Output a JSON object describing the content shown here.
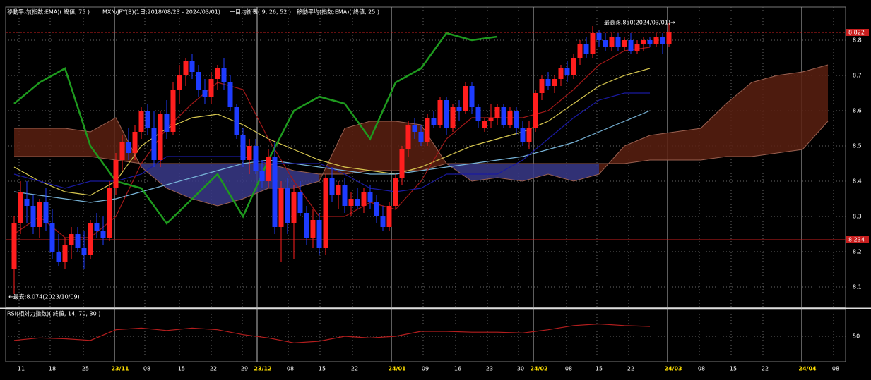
{
  "chart_data": {
    "type": "candlestick",
    "indicator_labels": [
      "移動平均(指数:EMA)( 終値, 75 )",
      "MXN/JPY(B)(1日;2018/08/23 - 2024/03/01)",
      "一目均衡表( 9, 26, 52 )",
      "移動平均(指数:EMA)( 終値, 25 )"
    ],
    "up_color": "#ff1e1e",
    "down_color": "#1e3cff",
    "ylim": [
      8.044,
      8.89
    ],
    "yticks": [
      8.8,
      8.7,
      8.6,
      8.5,
      8.4,
      8.3,
      8.2,
      8.1
    ],
    "grid": true,
    "xticks": [
      "11",
      "18",
      "25",
      "23/11",
      "08",
      "15",
      "22",
      "29",
      "23/12",
      "08",
      "15",
      "22",
      "24/01",
      "09",
      "16",
      "23",
      "30",
      "24/02",
      "08",
      "15",
      "22",
      "24/03",
      "08",
      "15",
      "22",
      "24/04",
      "08"
    ],
    "price_lines": [
      {
        "value": 8.822,
        "style": "dashed",
        "color": "#c81e1e"
      },
      {
        "value": 8.234,
        "style": "solid",
        "color": "#c81e1e"
      }
    ],
    "annotations": [
      "最高:8.850(2024/03/01)→",
      "←最安:8.074(2023/10/09)"
    ],
    "candles": [
      [
        8.15,
        8.3,
        8.08,
        8.28
      ],
      [
        8.28,
        8.4,
        8.25,
        8.37
      ],
      [
        8.35,
        8.4,
        8.28,
        8.33
      ],
      [
        8.33,
        8.36,
        8.25,
        8.27
      ],
      [
        8.27,
        8.35,
        8.24,
        8.34
      ],
      [
        8.34,
        8.38,
        8.26,
        8.28
      ],
      [
        8.28,
        8.32,
        8.18,
        8.2
      ],
      [
        8.2,
        8.25,
        8.16,
        8.17
      ],
      [
        8.17,
        8.24,
        8.15,
        8.22
      ],
      [
        8.22,
        8.27,
        8.18,
        8.25
      ],
      [
        8.25,
        8.27,
        8.2,
        8.21
      ],
      [
        8.21,
        8.26,
        8.15,
        8.19
      ],
      [
        8.19,
        8.29,
        8.18,
        8.28
      ],
      [
        8.28,
        8.31,
        8.24,
        8.26
      ],
      [
        8.26,
        8.3,
        8.22,
        8.24
      ],
      [
        8.24,
        8.4,
        8.23,
        8.38
      ],
      [
        8.38,
        8.48,
        8.36,
        8.46
      ],
      [
        8.46,
        8.53,
        8.43,
        8.51
      ],
      [
        8.51,
        8.55,
        8.46,
        8.48
      ],
      [
        8.48,
        8.56,
        8.46,
        8.54
      ],
      [
        8.54,
        8.61,
        8.52,
        8.6
      ],
      [
        8.6,
        8.62,
        8.53,
        8.55
      ],
      [
        8.55,
        8.6,
        8.44,
        8.46
      ],
      [
        8.46,
        8.6,
        8.44,
        8.59
      ],
      [
        8.59,
        8.63,
        8.52,
        8.54
      ],
      [
        8.54,
        8.68,
        8.53,
        8.66
      ],
      [
        8.66,
        8.73,
        8.62,
        8.7
      ],
      [
        8.7,
        8.75,
        8.67,
        8.74
      ],
      [
        8.74,
        8.76,
        8.69,
        8.71
      ],
      [
        8.71,
        8.73,
        8.64,
        8.66
      ],
      [
        8.66,
        8.69,
        8.62,
        8.64
      ],
      [
        8.64,
        8.71,
        8.62,
        8.69
      ],
      [
        8.69,
        8.73,
        8.66,
        8.72
      ],
      [
        8.72,
        8.75,
        8.66,
        8.68
      ],
      [
        8.68,
        8.7,
        8.6,
        8.61
      ],
      [
        8.61,
        8.62,
        8.52,
        8.53
      ],
      [
        8.53,
        8.55,
        8.44,
        8.46
      ],
      [
        8.46,
        8.52,
        8.42,
        8.5
      ],
      [
        8.5,
        8.52,
        8.42,
        8.43
      ],
      [
        8.43,
        8.46,
        8.38,
        8.4
      ],
      [
        8.4,
        8.49,
        8.38,
        8.47
      ],
      [
        8.47,
        8.51,
        8.25,
        8.27
      ],
      [
        8.27,
        8.4,
        8.17,
        8.38
      ],
      [
        8.38,
        8.41,
        8.25,
        8.28
      ],
      [
        8.28,
        8.39,
        8.18,
        8.37
      ],
      [
        8.37,
        8.4,
        8.3,
        8.31
      ],
      [
        8.31,
        8.33,
        8.22,
        8.24
      ],
      [
        8.24,
        8.32,
        8.21,
        8.29
      ],
      [
        8.29,
        8.31,
        8.19,
        8.21
      ],
      [
        8.21,
        8.42,
        8.19,
        8.41
      ],
      [
        8.41,
        8.44,
        8.34,
        8.36
      ],
      [
        8.36,
        8.4,
        8.32,
        8.39
      ],
      [
        8.39,
        8.41,
        8.31,
        8.33
      ],
      [
        8.33,
        8.37,
        8.3,
        8.35
      ],
      [
        8.35,
        8.38,
        8.32,
        8.33
      ],
      [
        8.33,
        8.38,
        8.31,
        8.37
      ],
      [
        8.37,
        8.39,
        8.32,
        8.34
      ],
      [
        8.34,
        8.36,
        8.28,
        8.3
      ],
      [
        8.3,
        8.33,
        8.26,
        8.27
      ],
      [
        8.27,
        8.34,
        8.26,
        8.33
      ],
      [
        8.33,
        8.42,
        8.32,
        8.41
      ],
      [
        8.41,
        8.5,
        8.39,
        8.49
      ],
      [
        8.49,
        8.57,
        8.47,
        8.56
      ],
      [
        8.56,
        8.58,
        8.52,
        8.54
      ],
      [
        8.54,
        8.56,
        8.5,
        8.51
      ],
      [
        8.51,
        8.59,
        8.5,
        8.58
      ],
      [
        8.58,
        8.6,
        8.55,
        8.56
      ],
      [
        8.56,
        8.64,
        8.55,
        8.63
      ],
      [
        8.63,
        8.64,
        8.53,
        8.55
      ],
      [
        8.55,
        8.62,
        8.54,
        8.61
      ],
      [
        8.61,
        8.63,
        8.57,
        8.6
      ],
      [
        8.6,
        8.68,
        8.59,
        8.67
      ],
      [
        8.67,
        8.68,
        8.59,
        8.61
      ],
      [
        8.61,
        8.62,
        8.55,
        8.57
      ],
      [
        8.55,
        8.58,
        8.54,
        8.57
      ],
      [
        8.57,
        8.62,
        8.55,
        8.58
      ],
      [
        8.58,
        8.62,
        8.56,
        8.61
      ],
      [
        8.61,
        8.62,
        8.55,
        8.56
      ],
      [
        8.56,
        8.61,
        8.55,
        8.6
      ],
      [
        8.6,
        8.61,
        8.53,
        8.55
      ],
      [
        8.55,
        8.57,
        8.5,
        8.51
      ],
      [
        8.51,
        8.57,
        8.49,
        8.55
      ],
      [
        8.55,
        8.66,
        8.54,
        8.65
      ],
      [
        8.65,
        8.7,
        8.63,
        8.69
      ],
      [
        8.69,
        8.71,
        8.66,
        8.67
      ],
      [
        8.67,
        8.7,
        8.65,
        8.69
      ],
      [
        8.69,
        8.73,
        8.67,
        8.72
      ],
      [
        8.72,
        8.74,
        8.68,
        8.7
      ],
      [
        8.7,
        8.76,
        8.69,
        8.75
      ],
      [
        8.75,
        8.8,
        8.73,
        8.79
      ],
      [
        8.79,
        8.81,
        8.75,
        8.76
      ],
      [
        8.76,
        8.84,
        8.75,
        8.82
      ],
      [
        8.82,
        8.83,
        8.78,
        8.8
      ],
      [
        8.8,
        8.82,
        8.77,
        8.78
      ],
      [
        8.78,
        8.82,
        8.77,
        8.81
      ],
      [
        8.81,
        8.82,
        8.77,
        8.78
      ],
      [
        8.78,
        8.81,
        8.77,
        8.8
      ],
      [
        8.8,
        8.82,
        8.76,
        8.77
      ],
      [
        8.77,
        8.8,
        8.76,
        8.79
      ],
      [
        8.79,
        8.81,
        8.77,
        8.8
      ],
      [
        8.8,
        8.81,
        8.78,
        8.79
      ],
      [
        8.79,
        8.82,
        8.78,
        8.81
      ],
      [
        8.81,
        8.82,
        8.76,
        8.79
      ],
      [
        8.79,
        8.85,
        8.78,
        8.822
      ]
    ],
    "cloud": {
      "up_color": "#5a2010",
      "down_color": "#3a3a8a",
      "edge_color": "#9a6050",
      "span_a": [
        8.55,
        8.55,
        8.55,
        8.54,
        8.58,
        8.44,
        8.38,
        8.35,
        8.33,
        8.35,
        8.38,
        8.38,
        8.4,
        8.55,
        8.57,
        8.57,
        8.56,
        8.45,
        8.4,
        8.41,
        8.4,
        8.42,
        8.4,
        8.42,
        8.5,
        8.53,
        8.54,
        8.55,
        8.62,
        8.68,
        8.7,
        8.71,
        8.73
      ],
      "span_b": [
        8.47,
        8.47,
        8.47,
        8.47,
        8.46,
        8.45,
        8.45,
        8.45,
        8.45,
        8.45,
        8.45,
        8.43,
        8.42,
        8.42,
        8.43,
        8.43,
        8.43,
        8.45,
        8.45,
        8.45,
        8.45,
        8.45,
        8.45,
        8.45,
        8.45,
        8.46,
        8.46,
        8.46,
        8.47,
        8.47,
        8.48,
        8.49,
        8.57
      ]
    },
    "lines": [
      {
        "color": "#d8c850",
        "values": [
          8.44,
          8.4,
          8.37,
          8.36,
          8.4,
          8.5,
          8.55,
          8.58,
          8.59,
          8.56,
          8.52,
          8.49,
          8.46,
          8.44,
          8.43,
          8.42,
          8.44,
          8.47,
          8.5,
          8.52,
          8.54,
          8.57,
          8.62,
          8.67,
          8.7,
          8.72
        ]
      },
      {
        "color": "#78b4d8",
        "values": [
          8.37,
          8.36,
          8.35,
          8.34,
          8.35,
          8.37,
          8.39,
          8.41,
          8.43,
          8.45,
          8.46,
          8.45,
          8.44,
          8.43,
          8.42,
          8.42,
          8.43,
          8.44,
          8.45,
          8.46,
          8.47,
          8.49,
          8.51,
          8.54,
          8.57,
          8.6
        ]
      },
      {
        "color": "#a01818",
        "values": [
          8.25,
          8.3,
          8.24,
          8.24,
          8.3,
          8.45,
          8.55,
          8.62,
          8.68,
          8.66,
          8.52,
          8.4,
          8.3,
          8.3,
          8.34,
          8.32,
          8.4,
          8.52,
          8.58,
          8.58,
          8.58,
          8.6,
          8.66,
          8.73,
          8.77,
          8.78
        ]
      },
      {
        "color": "#1a1aa0",
        "values": [
          8.42,
          8.4,
          8.38,
          8.4,
          8.4,
          8.42,
          8.47,
          8.47,
          8.47,
          8.47,
          8.45,
          8.45,
          8.45,
          8.42,
          8.38,
          8.37,
          8.38,
          8.42,
          8.42,
          8.42,
          8.46,
          8.52,
          8.58,
          8.63,
          8.65,
          8.65
        ]
      },
      {
        "color": "#1e9a1e",
        "values": [
          8.62,
          8.68,
          8.72,
          8.5,
          8.4,
          8.38,
          8.28,
          8.35,
          8.42,
          8.3,
          8.46,
          8.6,
          8.64,
          8.62,
          8.52,
          8.68,
          8.72,
          8.82,
          8.8,
          8.81
        ]
      }
    ],
    "rsi": {
      "title": "RSI(相対力指数)( 終値, 14, 70, 30 )",
      "color": "#b41e1e",
      "ylim": [
        20,
        80
      ],
      "yticks": [
        50
      ],
      "values": [
        45,
        48,
        47,
        45,
        58,
        60,
        57,
        60,
        58,
        52,
        48,
        42,
        44,
        50,
        48,
        50,
        56,
        56,
        55,
        55,
        54,
        58,
        63,
        65,
        63,
        62
      ]
    }
  }
}
